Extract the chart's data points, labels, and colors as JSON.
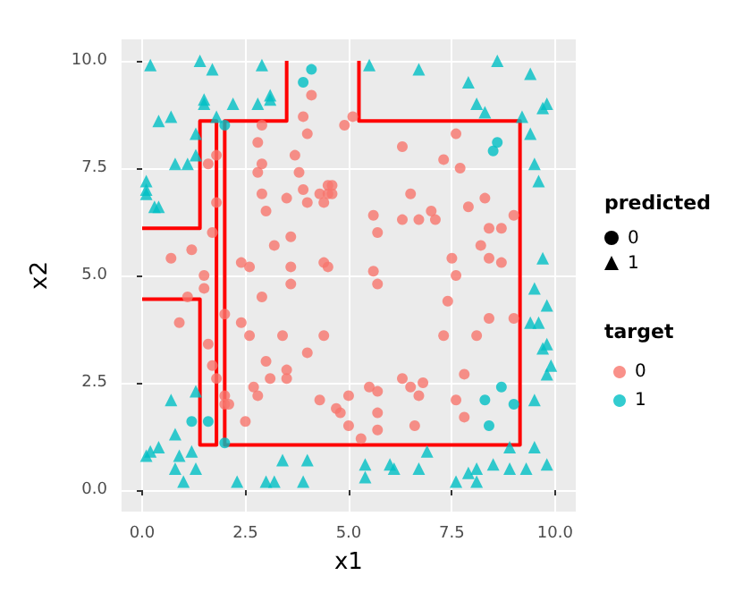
{
  "chart_data": {
    "type": "scatter",
    "xlabel": "x1",
    "ylabel": "x2",
    "legend_title": "predicted",
    "annotations": [
      "target"
    ],
    "legend": "right",
    "grid": true,
    "xlim": [
      -0.5,
      10.5
    ],
    "ylim": [
      -0.5,
      10.5
    ],
    "xticks": [
      {
        "value": 0,
        "label": "0.0"
      },
      {
        "value": 2.5,
        "label": "2.5"
      },
      {
        "value": 5,
        "label": "5.0"
      },
      {
        "value": 7.5,
        "label": "7.5"
      },
      {
        "value": 10,
        "label": "10.0"
      }
    ],
    "yticks": [
      {
        "value": 0,
        "label": "0.0"
      },
      {
        "value": 2.5,
        "label": "2.5"
      },
      {
        "value": 5,
        "label": "5.0"
      },
      {
        "value": 7.5,
        "label": "7.5"
      },
      {
        "value": 10,
        "label": "10.0"
      }
    ],
    "series": [
      {
        "name": "0",
        "color": "#f8766d",
        "marker": "circle",
        "x": [
          4.1,
          3.9,
          2.9,
          4.0,
          2.8,
          1.8,
          3.7,
          2.9,
          1.6,
          2.8,
          3.8,
          2.9,
          3.5,
          3.9,
          4.0,
          4.5,
          4.3,
          1.8,
          3.0,
          1.7,
          3.6,
          3.2,
          1.2,
          0.7,
          2.4,
          2.6,
          3.6,
          4.5,
          5.1,
          4.9,
          7.6,
          6.3,
          7.3,
          7.7,
          4.6,
          4.5,
          4.6,
          4.4,
          6.5,
          8.3,
          7.9,
          5.6,
          7.0,
          7.1,
          6.3,
          6.7,
          5.7,
          9.0,
          8.4,
          8.7,
          8.2,
          8.4,
          8.7,
          7.5,
          4.4,
          5.6,
          7.6,
          1.5,
          1.5,
          1.1,
          0.9,
          2.0,
          1.6,
          1.7,
          1.8,
          2.0,
          2.0,
          2.1,
          2.4,
          2.6,
          2.9,
          3.6,
          3.4,
          4.0,
          4.4,
          3.0,
          3.5,
          3.5,
          3.1,
          2.7,
          2.8,
          4.3,
          2.5,
          5.7,
          7.4,
          8.4,
          9.0,
          7.3,
          8.1,
          7.8,
          6.3,
          6.8,
          6.5,
          5.5,
          5.7,
          6.7,
          5.0,
          7.6,
          4.7,
          4.8,
          5.7,
          7.8,
          5.0,
          5.7,
          6.6,
          5.3
        ],
        "values": [
          9.2,
          8.7,
          8.5,
          8.3,
          8.1,
          7.8,
          7.8,
          7.6,
          7.6,
          7.4,
          7.4,
          6.9,
          6.8,
          7.0,
          6.7,
          7.1,
          6.9,
          6.7,
          6.5,
          6.0,
          5.9,
          5.7,
          5.6,
          5.4,
          5.3,
          5.2,
          5.2,
          5.2,
          8.7,
          8.5,
          8.3,
          8.0,
          7.7,
          7.5,
          7.1,
          6.9,
          6.9,
          6.7,
          6.9,
          6.8,
          6.6,
          6.4,
          6.5,
          6.3,
          6.3,
          6.3,
          6.0,
          6.4,
          6.1,
          6.1,
          5.7,
          5.4,
          5.3,
          5.4,
          5.3,
          5.1,
          5.0,
          5.0,
          4.7,
          4.5,
          3.9,
          4.1,
          3.4,
          2.9,
          2.6,
          2.2,
          2.0,
          2.0,
          3.9,
          3.6,
          4.5,
          4.8,
          3.6,
          3.2,
          3.6,
          3.0,
          2.8,
          2.6,
          2.6,
          2.4,
          2.2,
          2.1,
          1.6,
          4.8,
          4.4,
          4.0,
          4.0,
          3.6,
          3.6,
          2.7,
          2.6,
          2.5,
          2.4,
          2.4,
          2.3,
          2.2,
          2.2,
          2.1,
          1.9,
          1.8,
          1.8,
          1.7,
          1.5,
          1.4,
          1.5,
          1.2
        ]
      },
      {
        "name": "1",
        "color": "#00bfc4",
        "marker": "triangle",
        "x": [
          0.2,
          1.4,
          1.7,
          2.9,
          1.5,
          1.5,
          2.2,
          2.8,
          3.1,
          3.1,
          0.7,
          0.4,
          1.3,
          1.8,
          0.8,
          1.1,
          1.3,
          0.1,
          0.1,
          0.1,
          0.3,
          0.4,
          5.5,
          6.7,
          8.6,
          7.9,
          9.4,
          8.1,
          8.3,
          9.2,
          9.7,
          9.8,
          9.4,
          9.5,
          9.6,
          9.7,
          0.7,
          1.3,
          0.8,
          0.4,
          0.2,
          0.1,
          0.9,
          1.2,
          0.8,
          1.3,
          1.0,
          2.3,
          3.0,
          3.2,
          3.9,
          3.4,
          4.0,
          9.5,
          9.8,
          9.6,
          9.4,
          9.8,
          9.7,
          9.9,
          9.8,
          9.5,
          9.5,
          8.9,
          6.9,
          5.4,
          5.4,
          6.0,
          6.1,
          6.7,
          7.6,
          7.9,
          8.1,
          8.1,
          8.5,
          8.9,
          9.3,
          9.8
        ],
        "values": [
          9.9,
          10.0,
          9.8,
          9.9,
          9.1,
          9.0,
          9.0,
          9.0,
          9.2,
          9.1,
          8.7,
          8.6,
          8.3,
          8.7,
          7.6,
          7.6,
          7.8,
          7.2,
          7.0,
          6.9,
          6.6,
          6.6,
          9.9,
          9.8,
          10.0,
          9.5,
          9.7,
          9.0,
          8.8,
          8.7,
          8.9,
          9.0,
          8.3,
          7.6,
          7.2,
          5.4,
          2.1,
          2.3,
          1.3,
          1.0,
          0.9,
          0.8,
          0.8,
          0.9,
          0.5,
          0.5,
          0.2,
          0.2,
          0.2,
          0.2,
          0.2,
          0.7,
          0.7,
          4.7,
          4.3,
          3.9,
          3.9,
          3.4,
          3.3,
          2.9,
          2.7,
          2.1,
          1.0,
          1.0,
          0.9,
          0.6,
          0.3,
          0.6,
          0.5,
          0.5,
          0.2,
          0.4,
          0.5,
          0.2,
          0.6,
          0.5,
          0.5,
          0.6
        ]
      },
      {
        "color": "#00bfc4",
        "marker": "circle",
        "x": [
          2.0,
          4.1,
          3.9,
          8.6,
          8.5,
          1.2,
          1.6,
          2.0,
          8.7,
          8.3,
          9.0,
          8.4
        ],
        "values": [
          8.5,
          9.8,
          9.5,
          8.1,
          7.9,
          1.6,
          1.6,
          1.1,
          2.4,
          2.1,
          2.0,
          1.5
        ]
      },
      {
        "type": "line",
        "color": "#ff0000",
        "marker": "none",
        "x": [
          0,
          1.4,
          1.4,
          1.8,
          1.8,
          1.4,
          1.4,
          0
        ],
        "values": [
          6.1,
          6.1,
          8.6,
          8.6,
          1.05,
          1.05,
          4.45,
          4.45
        ]
      },
      {
        "type": "line",
        "color": "#ff0000",
        "marker": "none",
        "x": [
          3.5,
          3.5,
          2.0,
          2.0,
          9.15,
          9.15,
          5.25,
          5.25
        ],
        "values": [
          10,
          8.6,
          8.6,
          1.05,
          1.05,
          8.6,
          8.6,
          10
        ]
      }
    ]
  }
}
